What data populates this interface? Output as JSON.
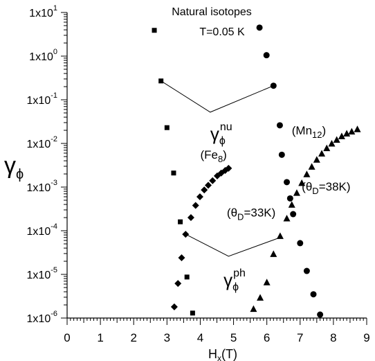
{
  "chart_data": {
    "type": "scatter",
    "title": "Natural isotopes",
    "subtitle": "T=0.05 K",
    "xlabel": "H",
    "xlabel_sub": "x",
    "xlabel_suffix": "(T)",
    "ylabel": "γ",
    "ylabel_sub": "ϕ",
    "xlim": [
      0,
      9
    ],
    "ylim": [
      1e-06,
      10
    ],
    "xscale": "linear",
    "yscale": "log",
    "x_ticks": [
      0,
      1,
      2,
      3,
      4,
      5,
      6,
      7,
      8,
      9
    ],
    "y_ticks": [
      {
        "value": 1e-06,
        "mant": "1x10",
        "exp": "-6"
      },
      {
        "value": 1e-05,
        "mant": "1x10",
        "exp": "-5"
      },
      {
        "value": 0.0001,
        "mant": "1x10",
        "exp": "-4"
      },
      {
        "value": 0.001,
        "mant": "1x10",
        "exp": "-3"
      },
      {
        "value": 0.01,
        "mant": "1x10",
        "exp": "-2"
      },
      {
        "value": 0.1,
        "mant": "1x10",
        "exp": "-1"
      },
      {
        "value": 1,
        "mant": "1x10",
        "exp": "0"
      },
      {
        "value": 10,
        "mant": "1x10",
        "exp": "1"
      }
    ],
    "grid": false,
    "series": [
      {
        "marker": "square",
        "color": "#000000",
        "points": [
          {
            "x": 2.62,
            "y": 3.9
          },
          {
            "x": 2.82,
            "y": 0.27
          },
          {
            "x": 3.0,
            "y": 0.023
          },
          {
            "x": 3.2,
            "y": 0.0021
          },
          {
            "x": 3.4,
            "y": 0.00016
          },
          {
            "x": 3.6,
            "y": 8.7e-06
          },
          {
            "x": 3.77,
            "y": 1.3e-06
          }
        ]
      },
      {
        "marker": "diamond",
        "color": "#000000",
        "points": [
          {
            "x": 3.22,
            "y": 1.8e-06
          },
          {
            "x": 3.33,
            "y": 6.2e-06
          },
          {
            "x": 3.44,
            "y": 2.4e-05
          },
          {
            "x": 3.56,
            "y": 8.3e-05
          },
          {
            "x": 3.72,
            "y": 0.0002
          },
          {
            "x": 3.86,
            "y": 0.00038
          },
          {
            "x": 3.99,
            "y": 0.0006
          },
          {
            "x": 4.12,
            "y": 0.00086
          },
          {
            "x": 4.24,
            "y": 0.0011
          },
          {
            "x": 4.37,
            "y": 0.0014
          },
          {
            "x": 4.51,
            "y": 0.0018
          },
          {
            "x": 4.63,
            "y": 0.0021
          },
          {
            "x": 4.75,
            "y": 0.0024
          },
          {
            "x": 4.85,
            "y": 0.0027
          }
        ]
      },
      {
        "marker": "circle",
        "color": "#000000",
        "points": [
          {
            "x": 5.78,
            "y": 4.5
          },
          {
            "x": 5.99,
            "y": 1.05
          },
          {
            "x": 6.2,
            "y": 0.21
          },
          {
            "x": 6.39,
            "y": 0.026
          },
          {
            "x": 6.45,
            "y": 0.0055
          },
          {
            "x": 6.6,
            "y": 0.0013
          },
          {
            "x": 6.7,
            "y": 0.00055
          },
          {
            "x": 6.79,
            "y": 0.00024
          },
          {
            "x": 7.0,
            "y": 5.2e-05
          },
          {
            "x": 7.2,
            "y": 1.2e-05
          },
          {
            "x": 7.4,
            "y": 3.5e-06
          },
          {
            "x": 7.6,
            "y": 1.2e-06
          }
        ]
      },
      {
        "marker": "triangle",
        "color": "#000000",
        "points": [
          {
            "x": 5.6,
            "y": 1.6e-06
          },
          {
            "x": 5.8,
            "y": 2.9e-06
          },
          {
            "x": 6.0,
            "y": 6.5e-06
          },
          {
            "x": 6.2,
            "y": 2.9e-05
          },
          {
            "x": 6.4,
            "y": 7.5e-05
          },
          {
            "x": 6.6,
            "y": 0.00019
          },
          {
            "x": 6.75,
            "y": 0.00039
          },
          {
            "x": 6.9,
            "y": 0.00073
          },
          {
            "x": 7.05,
            "y": 0.00123
          },
          {
            "x": 7.2,
            "y": 0.00195
          },
          {
            "x": 7.35,
            "y": 0.0029
          },
          {
            "x": 7.5,
            "y": 0.0042
          },
          {
            "x": 7.65,
            "y": 0.0058
          },
          {
            "x": 7.8,
            "y": 0.0077
          },
          {
            "x": 7.95,
            "y": 0.0098
          },
          {
            "x": 8.1,
            "y": 0.012
          },
          {
            "x": 8.25,
            "y": 0.0145
          },
          {
            "x": 8.4,
            "y": 0.0167
          },
          {
            "x": 8.55,
            "y": 0.0185
          },
          {
            "x": 8.72,
            "y": 0.021
          }
        ]
      }
    ],
    "connector_lines": [
      {
        "points": [
          {
            "x": 2.82,
            "y": 0.27
          },
          {
            "x": 4.3,
            "y": 0.052
          },
          {
            "x": 6.2,
            "y": 0.21
          }
        ]
      },
      {
        "points": [
          {
            "x": 3.56,
            "y": 8.3e-05
          },
          {
            "x": 4.85,
            "y": 2.6e-05
          },
          {
            "x": 6.4,
            "y": 7e-05
          }
        ]
      }
    ],
    "annotations": [
      {
        "text": "γ",
        "sub": "ϕ",
        "sup": "nu",
        "x": 4.3,
        "y": 0.012
      },
      {
        "text": "γ",
        "sub": "ϕ",
        "sup": "ph",
        "x": 4.7,
        "y": 5.4e-06
      },
      {
        "text": "(Fe",
        "sub": "8",
        "suffix": ")",
        "x": 4.0,
        "y": 0.0045
      },
      {
        "text": "(Mn",
        "sub": "12",
        "suffix": ")",
        "x": 6.75,
        "y": 0.016
      },
      {
        "text": "(θ",
        "sub": "D",
        "suffix": "=33K)",
        "x": 4.8,
        "y": 0.00021
      },
      {
        "text": "(θ",
        "sub": "D",
        "suffix": "=38K)",
        "x": 7.05,
        "y": 0.00084
      }
    ]
  }
}
